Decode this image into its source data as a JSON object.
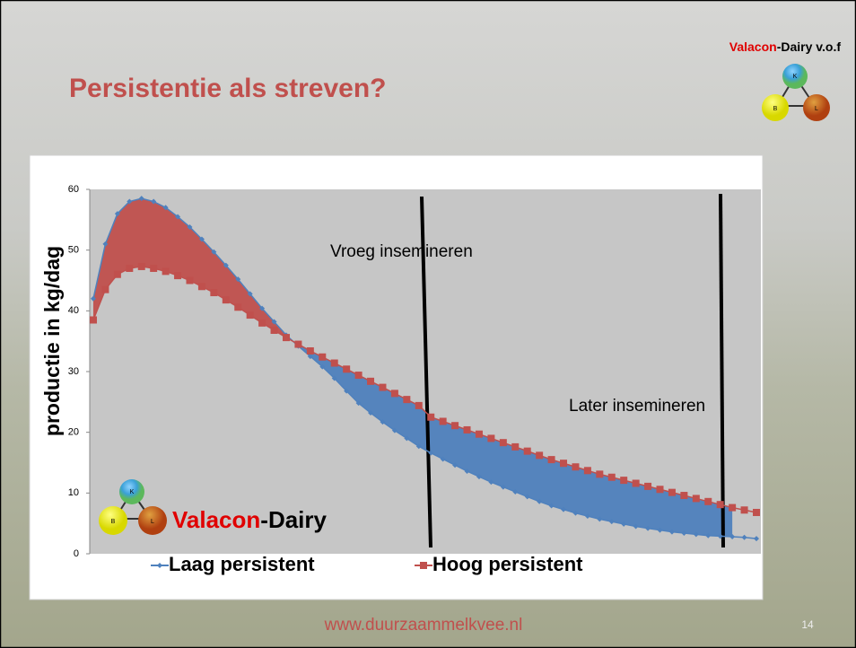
{
  "header": {
    "company_red": "Valacon",
    "company_rest": "-Dairy v.o.f",
    "title": "Persistentie als streven?"
  },
  "logo": {
    "top": "K",
    "left": "B",
    "right": "L"
  },
  "watermark": {
    "red": "Valacon",
    "rest": "-Dairy"
  },
  "footer": {
    "url": "www.duurzaammelkvee.nl",
    "page": "14"
  },
  "chart_data": {
    "type": "line",
    "ylabel": "productie in kg/dag",
    "ylim": [
      0,
      60
    ],
    "yticks": [
      0,
      10,
      20,
      30,
      40,
      50,
      60
    ],
    "categories": [
      null,
      null,
      null,
      null,
      null,
      null,
      null,
      null,
      null,
      null,
      null,
      null,
      null,
      null,
      null,
      null,
      null,
      null,
      null,
      null,
      null,
      null,
      null,
      null,
      null,
      null,
      null,
      null,
      null,
      null,
      null,
      null,
      null,
      null,
      null,
      null,
      null,
      null,
      null,
      null,
      null,
      null,
      null,
      null,
      null,
      null,
      null,
      null,
      null,
      null,
      null,
      null,
      null,
      null,
      null,
      null
    ],
    "series": [
      {
        "name": "Laag persistent",
        "color": "#4f81bd",
        "marker": "diamond",
        "values": [
          42,
          51,
          56,
          58,
          58.5,
          58,
          57,
          55.5,
          53.8,
          51.8,
          49.7,
          47.5,
          45.2,
          42.8,
          40.4,
          38.2,
          36,
          34.2,
          32.5,
          30.8,
          28.9,
          26.8,
          24.8,
          23.2,
          21.7,
          20.3,
          19,
          17.7,
          16.6,
          15.6,
          14.6,
          13.6,
          12.7,
          11.8,
          11,
          10.2,
          9.4,
          8.6,
          7.9,
          7.3,
          6.7,
          6.2,
          5.7,
          5.3,
          4.9,
          4.5,
          4.2,
          3.9,
          3.6,
          3.4,
          3.2,
          3.0,
          2.9,
          2.8,
          2.7,
          2.5
        ]
      },
      {
        "name": "Hoog persistent",
        "color": "#c0504d",
        "marker": "square",
        "values": [
          38.5,
          43.5,
          46,
          47,
          47.3,
          47,
          46.5,
          45.8,
          45,
          44,
          43,
          41.8,
          40.6,
          39.3,
          38,
          36.8,
          35.6,
          34.5,
          33.4,
          32.4,
          31.4,
          30.4,
          29.4,
          28.4,
          27.4,
          26.4,
          25.4,
          24.4,
          22.5,
          21.8,
          21.1,
          20.4,
          19.7,
          19,
          18.3,
          17.6,
          16.9,
          16.2,
          15.5,
          14.9,
          14.3,
          13.7,
          13.1,
          12.6,
          12.1,
          11.6,
          11.1,
          10.6,
          10.1,
          9.6,
          9.1,
          8.6,
          8.1,
          7.6,
          7.2,
          6.8
        ]
      }
    ],
    "annotations": [
      "Vroeg insemineren",
      "Later insemineren"
    ],
    "legend": "bottom"
  }
}
